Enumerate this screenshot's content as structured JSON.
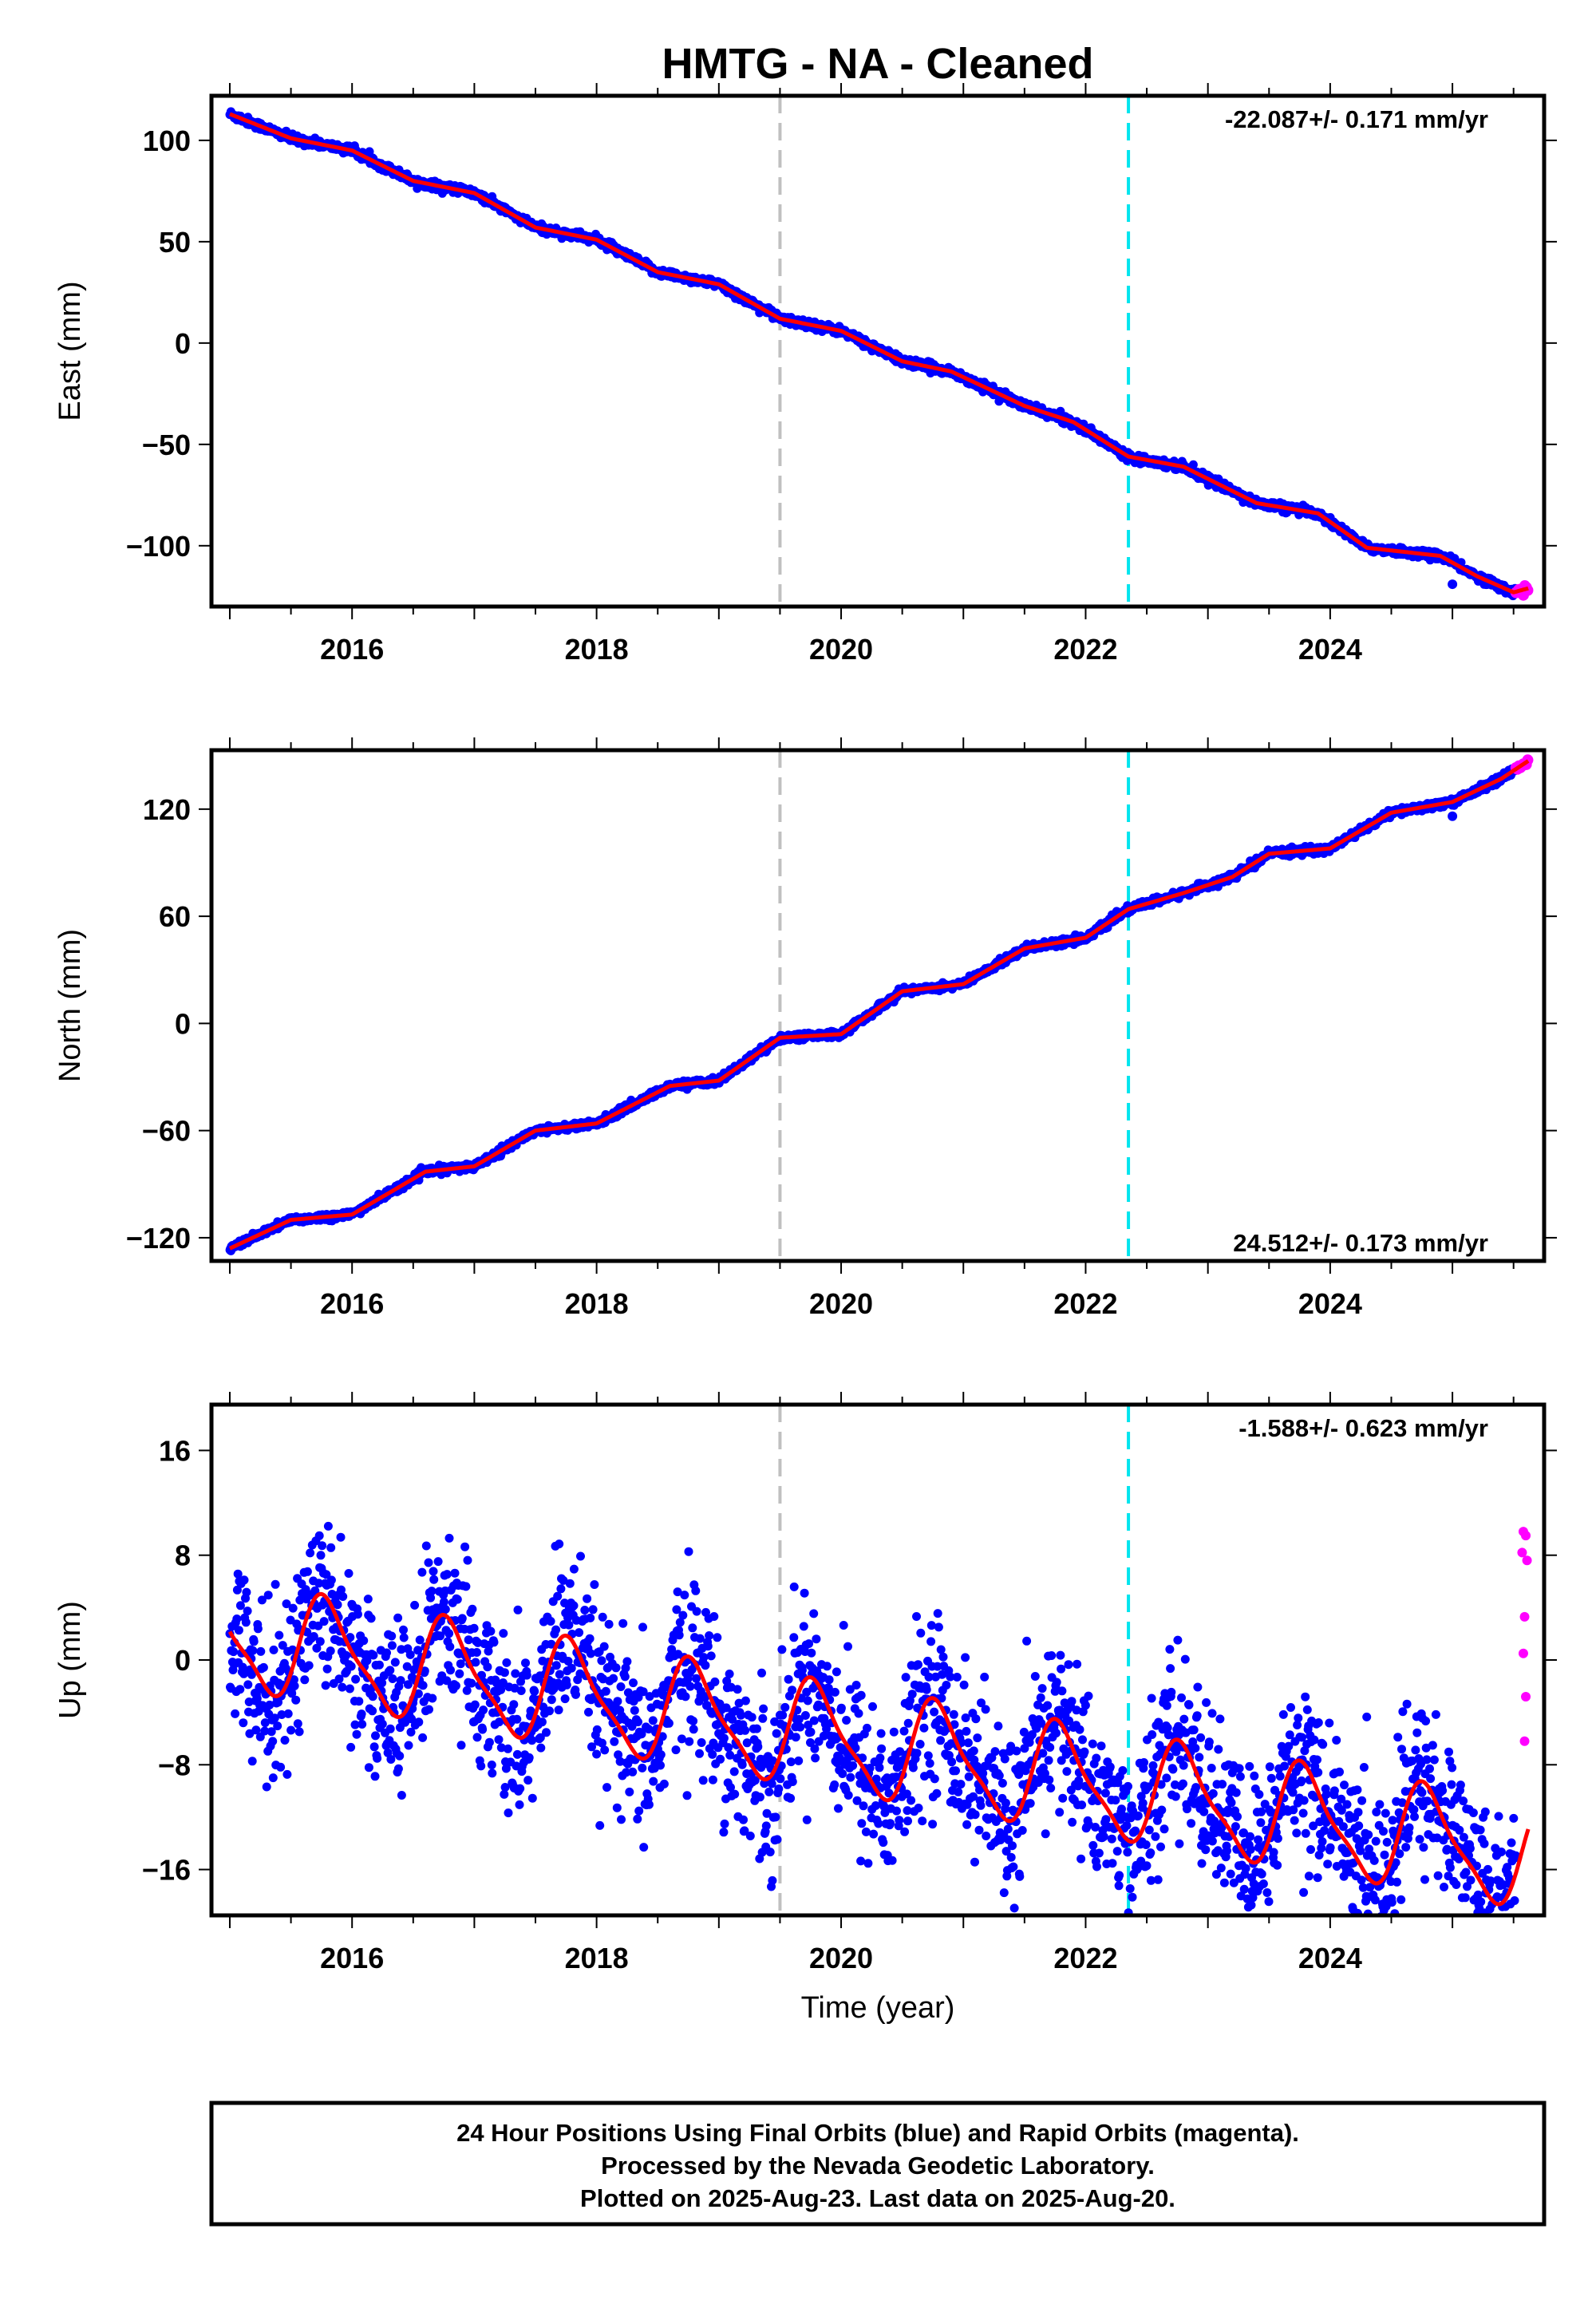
{
  "title": "HMTG  - NA - Cleaned",
  "footer": {
    "line1": "24 Hour Positions Using Final Orbits (blue) and Rapid Orbits (magenta).",
    "line2": "Processed by the Nevada Geodetic Laboratory.",
    "line3": "Plotted on 2025-Aug-23. Last data on 2025-Aug-20."
  },
  "colors": {
    "final_orbits": "#0000ff",
    "rapid_orbits": "#ff00ff",
    "model_fit": "#ff0000",
    "event_gray": "#c0c0c0",
    "event_cyan": "#00e5ee"
  },
  "chart_data": [
    {
      "type": "scatter",
      "ylabel": "East (mm)",
      "xlabel": "",
      "xlim": [
        2014.85,
        2025.75
      ],
      "ylim": [
        -130,
        122
      ],
      "xticks": [
        2016,
        2018,
        2020,
        2022,
        2024
      ],
      "yticks": [
        100,
        50,
        0,
        -50,
        -100
      ],
      "ytick_labels": [
        "100",
        "50",
        "0",
        "−50",
        "−100"
      ],
      "rate_label": "-22.087+/- 0.171 mm/yr",
      "rate_position": "top-right",
      "event_lines": [
        {
          "x": 2019.5,
          "color": "gray"
        },
        {
          "x": 2022.35,
          "color": "cyan"
        }
      ],
      "fit": {
        "x0": 2015.0,
        "y0": 113,
        "rate": -22.087,
        "annual_amp": 1.5,
        "phase": 0.3
      },
      "knots": [
        [
          2015.0,
          113
        ],
        [
          2015.5,
          101
        ],
        [
          2016.0,
          95
        ],
        [
          2016.5,
          80
        ],
        [
          2017.0,
          74
        ],
        [
          2017.5,
          57
        ],
        [
          2018.0,
          51
        ],
        [
          2018.5,
          35
        ],
        [
          2019.0,
          29
        ],
        [
          2019.5,
          12
        ],
        [
          2020.0,
          6
        ],
        [
          2020.5,
          -9
        ],
        [
          2020.9,
          -14
        ],
        [
          2021.5,
          -31
        ],
        [
          2021.9,
          -39
        ],
        [
          2022.35,
          -56
        ],
        [
          2022.8,
          -61
        ],
        [
          2023.4,
          -79
        ],
        [
          2023.9,
          -84
        ],
        [
          2024.3,
          -101
        ],
        [
          2024.9,
          -105
        ],
        [
          2025.2,
          -115
        ],
        [
          2025.5,
          -123
        ],
        [
          2025.62,
          -121
        ]
      ],
      "noise_mm": 1.8,
      "final_range": [
        2015.0,
        2025.52
      ],
      "rapid_range": [
        2025.52,
        2025.62
      ],
      "outliers": [
        [
          2025.0,
          -119
        ],
        [
          2025.15,
          -113
        ]
      ]
    },
    {
      "type": "scatter",
      "ylabel": "North (mm)",
      "xlabel": "",
      "xlim": [
        2014.85,
        2025.75
      ],
      "ylim": [
        -133,
        153
      ],
      "xticks": [
        2016,
        2018,
        2020,
        2022,
        2024
      ],
      "yticks": [
        120,
        60,
        0,
        -60,
        -120
      ],
      "ytick_labels": [
        "120",
        "60",
        "0",
        "−60",
        "−120"
      ],
      "rate_label": "24.512+/- 0.173 mm/yr",
      "rate_position": "bottom-right",
      "event_lines": [
        {
          "x": 2019.5,
          "color": "gray"
        },
        {
          "x": 2022.35,
          "color": "cyan"
        }
      ],
      "knots": [
        [
          2015.0,
          -126
        ],
        [
          2015.5,
          -110
        ],
        [
          2016.0,
          -107
        ],
        [
          2016.6,
          -83
        ],
        [
          2017.0,
          -80
        ],
        [
          2017.5,
          -60
        ],
        [
          2018.0,
          -56
        ],
        [
          2018.6,
          -35
        ],
        [
          2019.0,
          -32
        ],
        [
          2019.5,
          -8
        ],
        [
          2020.0,
          -6
        ],
        [
          2020.5,
          18
        ],
        [
          2021.0,
          22
        ],
        [
          2021.5,
          42
        ],
        [
          2022.0,
          48
        ],
        [
          2022.35,
          64
        ],
        [
          2022.8,
          73
        ],
        [
          2023.2,
          82
        ],
        [
          2023.5,
          95
        ],
        [
          2024.0,
          98
        ],
        [
          2024.5,
          118
        ],
        [
          2025.0,
          124
        ],
        [
          2025.4,
          137
        ],
        [
          2025.62,
          147
        ]
      ],
      "noise_mm": 1.8,
      "final_range": [
        2015.0,
        2025.52
      ],
      "rapid_range": [
        2025.52,
        2025.62
      ],
      "outliers": [
        [
          2025.0,
          116
        ]
      ]
    },
    {
      "type": "scatter",
      "ylabel": "Up (mm)",
      "xlabel": "Time (year)",
      "xlim": [
        2014.85,
        2025.75
      ],
      "ylim": [
        -19.5,
        19.5
      ],
      "xticks": [
        2016,
        2018,
        2020,
        2022,
        2024
      ],
      "yticks": [
        16,
        8,
        0,
        -8,
        -16
      ],
      "ytick_labels": [
        "16",
        "8",
        "0",
        "−8",
        "−16"
      ],
      "rate_label": "-1.588+/- 0.623 mm/yr",
      "rate_position": "top-right",
      "event_lines": [
        {
          "x": 2019.5,
          "color": "gray"
        },
        {
          "x": 2022.35,
          "color": "cyan"
        }
      ],
      "fit": {
        "x0": 2015.0,
        "offset": 1.8,
        "rate": -1.588,
        "annual_amp": 3.8,
        "annual_phase_peak": 0.8,
        "semiannual_amp": 1.0
      },
      "noise_mm": 3.2,
      "final_range": [
        2015.0,
        2025.52
      ],
      "rapid_points": [
        [
          2025.58,
          9.8
        ],
        [
          2025.6,
          9.5
        ],
        [
          2025.57,
          8.2
        ],
        [
          2025.61,
          7.6
        ],
        [
          2025.59,
          3.3
        ],
        [
          2025.58,
          0.5
        ],
        [
          2025.6,
          -2.8
        ],
        [
          2025.59,
          -6.2
        ]
      ]
    }
  ]
}
